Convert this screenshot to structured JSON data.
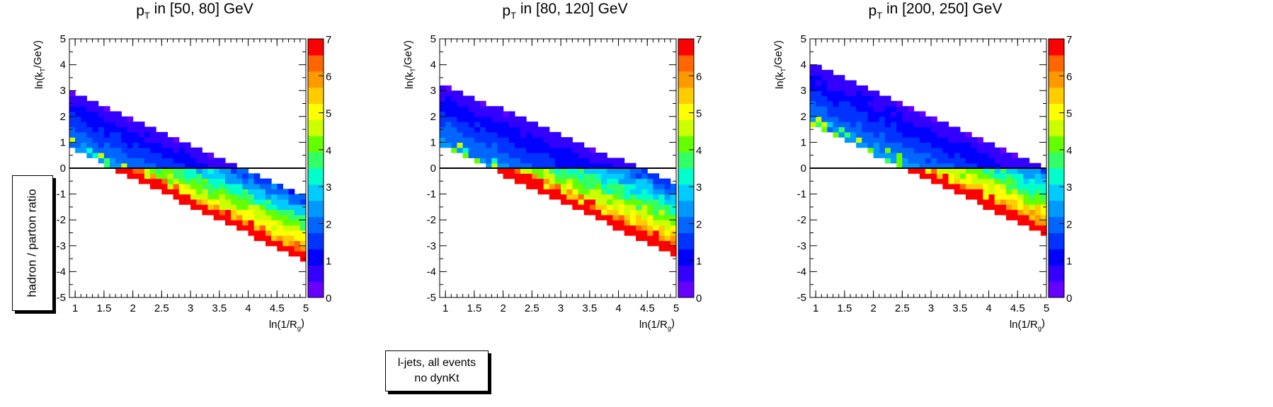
{
  "colors": {
    "palette": [
      "#6600ff",
      "#3300ff",
      "#0000ff",
      "#0033ff",
      "#0066ff",
      "#0099ff",
      "#00ccff",
      "#00ffcc",
      "#33ff66",
      "#66ff00",
      "#ccff00",
      "#ffff00",
      "#ffcc00",
      "#ff9900",
      "#ff6600",
      "#ff0000"
    ],
    "reference_line": "#000000"
  },
  "y_axis_title": "hadron / parton ratio",
  "sample_label": {
    "line1": "l-jets, all events",
    "line2": "no dynKt"
  },
  "chart_data": [
    {
      "type": "heatmap",
      "title": {
        "main": "p",
        "sub": "T",
        "rest": " in [50, 80] GeV"
      },
      "xlabel": {
        "main": "ln(1/R",
        "sub": "g",
        "end": ")"
      },
      "ylabel": {
        "main": "ln(k",
        "sub": "T",
        "end": "/GeV)"
      },
      "xlim": [
        0.9,
        5
      ],
      "ylim": [
        -5,
        5
      ],
      "zlim": [
        0,
        7
      ],
      "x_ticks": [
        "1",
        "1.5",
        "2",
        "2.5",
        "3",
        "3.5",
        "4",
        "4.5",
        "5"
      ],
      "y_ticks": [
        "-5",
        "-4",
        "-3",
        "-2",
        "-1",
        "0",
        "1",
        "2",
        "3",
        "4",
        "5"
      ],
      "z_ticks": [
        "0",
        "1",
        "2",
        "3",
        "4",
        "5",
        "6",
        "7"
      ],
      "reference_line_y": 0,
      "upper_edge_at_x_start": 2.9,
      "upper_edge_slope": -0.99,
      "lower_edge_at_x_start": 0.9,
      "lower_edge_slope": -1.03,
      "x_step": 0.1,
      "y_step": 0.2
    },
    {
      "type": "heatmap",
      "title": {
        "main": "p",
        "sub": "T",
        "rest": " in [80, 120] GeV"
      },
      "xlabel": {
        "main": "ln(1/R",
        "sub": "g",
        "end": ")"
      },
      "ylabel": {
        "main": "ln(k",
        "sub": "T",
        "end": "/GeV)"
      },
      "xlim": [
        0.9,
        5
      ],
      "ylim": [
        -5,
        5
      ],
      "zlim": [
        0,
        7
      ],
      "x_ticks": [
        "1",
        "1.5",
        "2",
        "2.5",
        "3",
        "3.5",
        "4",
        "4.5",
        "5"
      ],
      "y_ticks": [
        "-5",
        "-4",
        "-3",
        "-2",
        "-1",
        "0",
        "1",
        "2",
        "3",
        "4",
        "5"
      ],
      "z_ticks": [
        "0",
        "1",
        "2",
        "3",
        "4",
        "5",
        "6",
        "7"
      ],
      "reference_line_y": 0,
      "upper_edge_at_x_start": 3.2,
      "upper_edge_slope": -0.95,
      "lower_edge_at_x_start": 1.0,
      "lower_edge_slope": -1.0,
      "x_step": 0.1,
      "y_step": 0.2
    },
    {
      "type": "heatmap",
      "title": {
        "main": "p",
        "sub": "T",
        "rest": " in [200, 250] GeV"
      },
      "xlabel": {
        "main": "ln(1/R",
        "sub": "g",
        "end": ")"
      },
      "ylabel": {
        "main": "ln(k",
        "sub": "T",
        "end": "/GeV)"
      },
      "xlim": [
        0.9,
        5
      ],
      "ylim": [
        -5,
        5
      ],
      "zlim": [
        0,
        7
      ],
      "x_ticks": [
        "1",
        "1.5",
        "2",
        "2.5",
        "3",
        "3.5",
        "4",
        "4.5",
        "5"
      ],
      "y_ticks": [
        "-5",
        "-4",
        "-3",
        "-2",
        "-1",
        "0",
        "1",
        "2",
        "3",
        "4",
        "5"
      ],
      "z_ticks": [
        "0",
        "1",
        "2",
        "3",
        "4",
        "5",
        "6",
        "7"
      ],
      "reference_line_y": 0,
      "upper_edge_at_x_start": 4.0,
      "upper_edge_slope": -1.0,
      "lower_edge_at_x_start": 1.8,
      "lower_edge_slope": -1.0,
      "x_step": 0.1,
      "y_step": 0.2
    }
  ]
}
